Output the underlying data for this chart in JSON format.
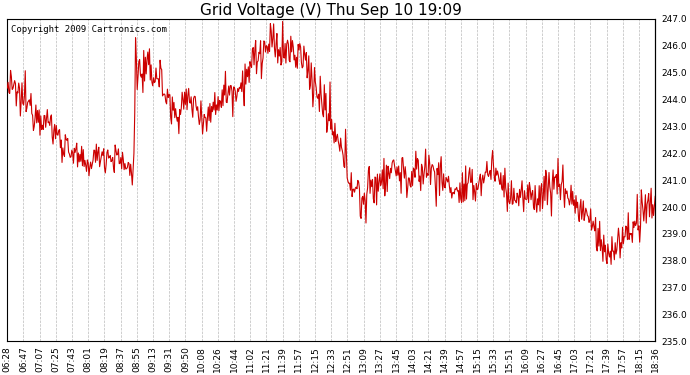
{
  "title": "Grid Voltage (V) Thu Sep 10 19:09",
  "copyright_text": "Copyright 2009 Cartronics.com",
  "line_color": "#cc0000",
  "background_color": "#ffffff",
  "grid_color": "#bbbbbb",
  "ylim": [
    235.0,
    247.0
  ],
  "yticks": [
    235.0,
    236.0,
    237.0,
    238.0,
    239.0,
    240.0,
    241.0,
    242.0,
    243.0,
    244.0,
    245.0,
    246.0,
    247.0
  ],
  "xtick_labels": [
    "06:28",
    "06:47",
    "07:07",
    "07:25",
    "07:43",
    "08:01",
    "08:19",
    "08:37",
    "08:55",
    "09:13",
    "09:31",
    "09:50",
    "10:08",
    "10:26",
    "10:44",
    "11:02",
    "11:21",
    "11:39",
    "11:57",
    "12:15",
    "12:33",
    "12:51",
    "13:09",
    "13:27",
    "13:45",
    "14:03",
    "14:21",
    "14:39",
    "14:57",
    "15:15",
    "15:33",
    "15:51",
    "16:09",
    "16:27",
    "16:45",
    "17:03",
    "17:21",
    "17:39",
    "17:57",
    "18:15",
    "18:36"
  ],
  "title_fontsize": 11,
  "tick_fontsize": 6.5,
  "copyright_fontsize": 6.5,
  "line_width": 0.8,
  "figwidth": 6.9,
  "figheight": 3.75,
  "dpi": 100
}
